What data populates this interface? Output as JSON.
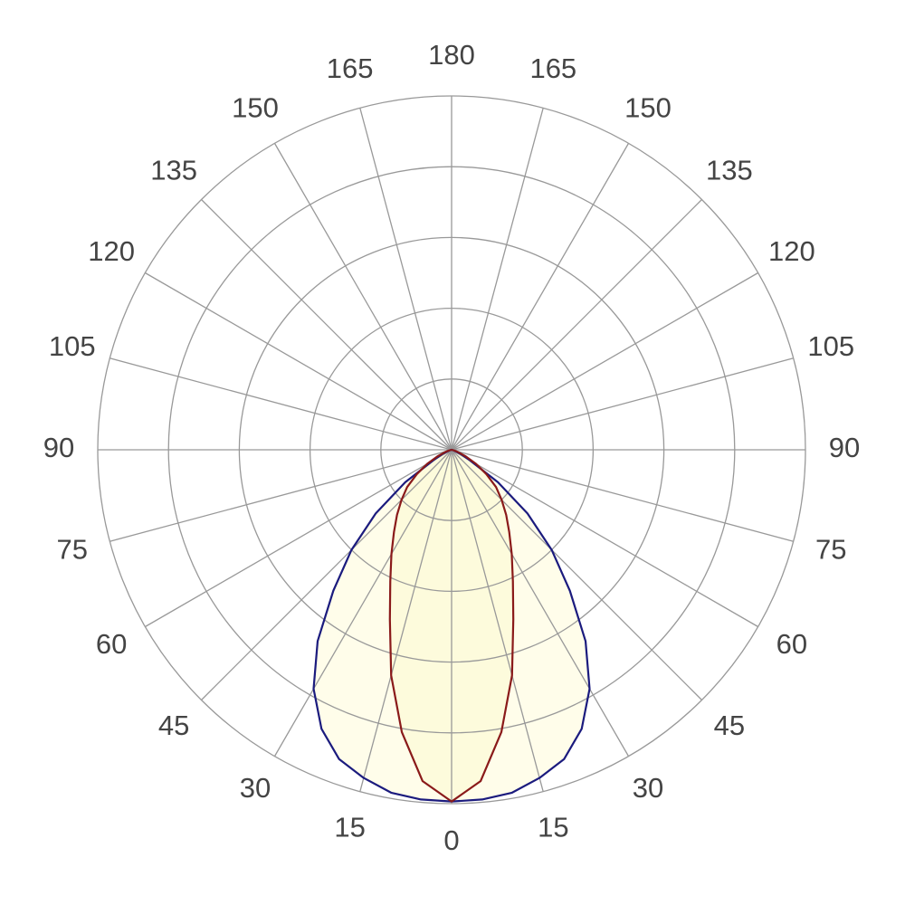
{
  "chart_data": {
    "type": "polar",
    "rlim": [
      0,
      5
    ],
    "rticks": [
      1,
      2,
      3,
      4,
      5
    ],
    "thetaticks": [
      0,
      15,
      30,
      45,
      60,
      75,
      90,
      105,
      120,
      135,
      150,
      165,
      180,
      {
        "value": 195,
        "label": "165"
      },
      {
        "value": 210,
        "label": "150"
      },
      {
        "value": 225,
        "label": "135"
      },
      {
        "value": 240,
        "label": "120"
      },
      {
        "value": 255,
        "label": "105"
      },
      {
        "value": 270,
        "label": "90"
      },
      {
        "value": 285,
        "label": "75"
      },
      {
        "value": 300,
        "label": "60"
      },
      {
        "value": 315,
        "label": "45"
      },
      {
        "value": 330,
        "label": "30"
      },
      {
        "value": 345,
        "label": "15"
      }
    ],
    "theta": [
      270,
      275,
      280,
      285,
      290,
      295,
      300,
      305,
      310,
      315,
      320,
      325,
      330,
      335,
      340,
      345,
      350,
      355,
      0,
      5,
      10,
      15,
      20,
      25,
      30,
      35,
      40,
      45,
      50,
      55,
      60,
      65,
      70,
      75,
      80,
      85,
      90
    ],
    "series": [
      {
        "color": "#1b1b7e",
        "values": [
          0,
          0,
          0,
          0.02,
          0.05,
          0.15,
          0.3,
          0.8,
          1.4,
          2.0,
          2.6,
          3.3,
          3.9,
          4.35,
          4.65,
          4.8,
          4.92,
          4.96,
          4.97,
          4.96,
          4.92,
          4.8,
          4.65,
          4.35,
          3.9,
          3.3,
          2.6,
          2.0,
          1.4,
          0.8,
          0.3,
          0.15,
          0.05,
          0.02,
          0,
          0,
          0
        ]
      },
      {
        "color": "#8a1a1a",
        "values": [
          0,
          0,
          0,
          0.04,
          0.1,
          0.22,
          0.4,
          0.6,
          0.82,
          1.0,
          1.2,
          1.42,
          1.7,
          2.05,
          2.55,
          3.3,
          4.05,
          4.7,
          4.97,
          4.7,
          4.05,
          3.3,
          2.55,
          2.05,
          1.7,
          1.42,
          1.2,
          1.0,
          0.82,
          0.6,
          0.4,
          0.22,
          0.1,
          0.04,
          0,
          0,
          0
        ]
      }
    ]
  }
}
